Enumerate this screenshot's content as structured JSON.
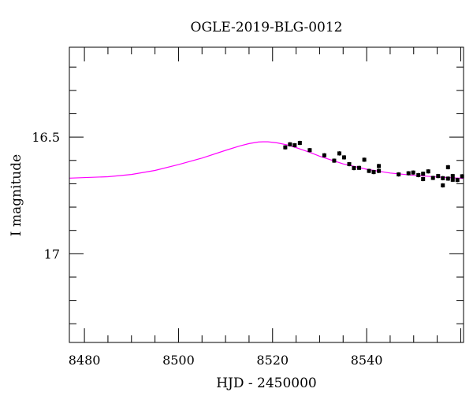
{
  "chart_data": {
    "type": "scatter",
    "title": "OGLE-2019-BLG-0012",
    "xlabel": "HJD - 2450000",
    "ylabel": "I magnitude",
    "xlim": [
      8476.8,
      8560.6
    ],
    "ylim": [
      17.38,
      16.115
    ],
    "y_inverted": true,
    "x_ticks": [
      8480,
      8500,
      8520,
      8540
    ],
    "x_tick_labels": [
      "8480",
      "8500",
      "8520",
      "8540"
    ],
    "y_ticks": [
      16.5,
      17
    ],
    "y_tick_labels": [
      "16.5",
      "17"
    ],
    "grid": false,
    "colors": {
      "data": "#000000",
      "model": "#ff00ff"
    },
    "series": [
      {
        "name": "data",
        "type": "scatter",
        "x": [
          8522.7,
          8523.7,
          8524.7,
          8525.8,
          8527.9,
          8531.0,
          8533.1,
          8534.2,
          8535.2,
          8536.3,
          8537.3,
          8538.4,
          8539.5,
          8540.5,
          8541.5,
          8542.6,
          8542.6,
          8546.8,
          8548.9,
          8549.9,
          8551.0,
          8552.0,
          8552.0,
          8553.1,
          8554.1,
          8555.2,
          8556.2,
          8556.2,
          8557.3,
          8557.3,
          8558.3,
          8558.3,
          8559.3,
          8560.3
        ],
        "y": [
          16.544,
          16.531,
          16.535,
          16.525,
          16.556,
          16.578,
          16.601,
          16.57,
          16.587,
          16.616,
          16.633,
          16.632,
          16.597,
          16.645,
          16.65,
          16.624,
          16.645,
          16.66,
          16.655,
          16.652,
          16.663,
          16.657,
          16.68,
          16.647,
          16.675,
          16.667,
          16.676,
          16.707,
          16.629,
          16.678,
          16.667,
          16.683,
          16.684,
          16.668
        ],
        "yerr": 0.006
      },
      {
        "name": "model",
        "type": "line",
        "x": [
          8476.8,
          8485,
          8490,
          8495,
          8500,
          8505,
          8510,
          8513,
          8515,
          8517,
          8518,
          8519,
          8521,
          8523,
          8525,
          8528,
          8530,
          8535,
          8540,
          8545,
          8550,
          8555,
          8560.6
        ],
        "y": [
          16.676,
          16.67,
          16.66,
          16.643,
          16.618,
          16.59,
          16.557,
          16.538,
          16.528,
          16.521,
          16.52,
          16.52,
          16.525,
          16.533,
          16.545,
          16.566,
          16.582,
          16.615,
          16.638,
          16.654,
          16.664,
          16.671,
          16.677
        ]
      }
    ]
  }
}
